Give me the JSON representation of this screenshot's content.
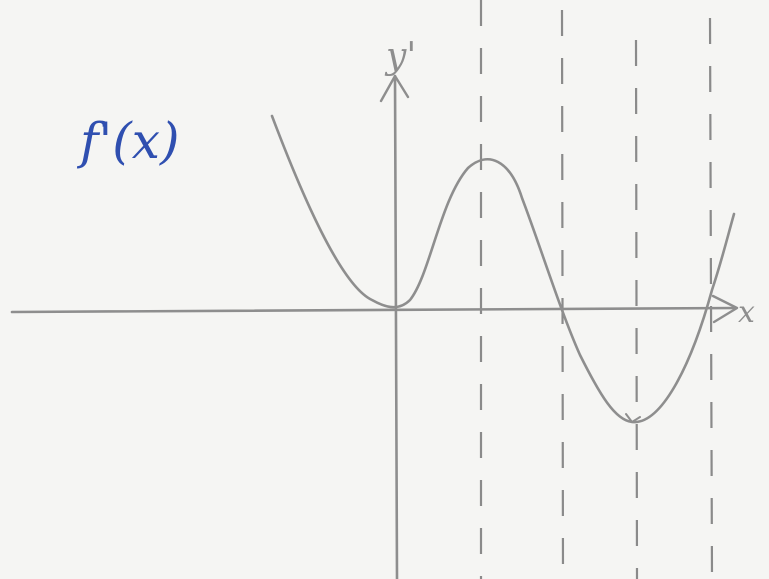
{
  "graph": {
    "function_label": "f'(x)",
    "y_axis_label": "y'",
    "x_axis_label": "x"
  },
  "colors": {
    "pencil": "#8e8e8e",
    "ink": "#2f4fb0",
    "paper": "#f5f5f3"
  }
}
